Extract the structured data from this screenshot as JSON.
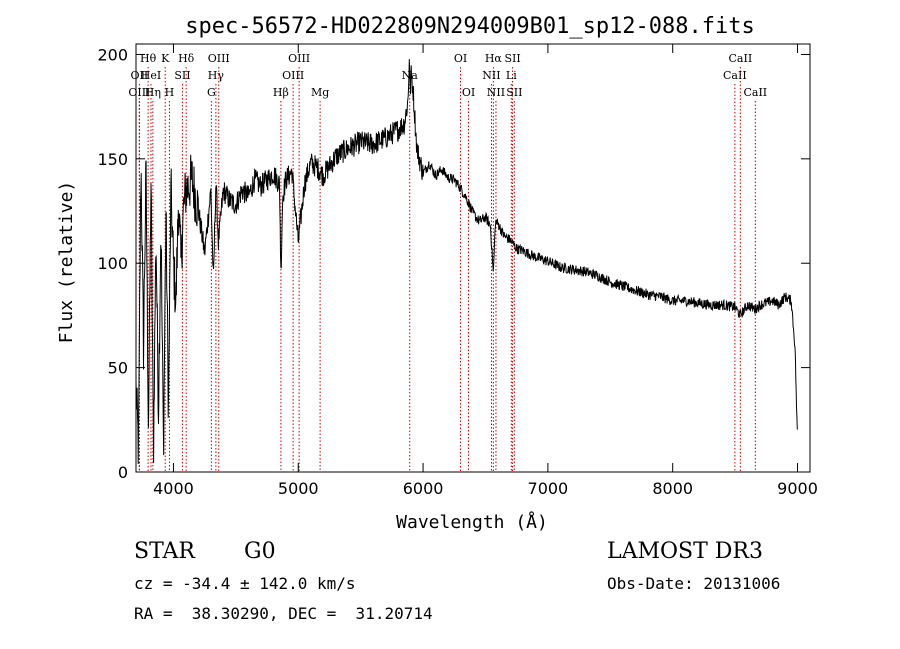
{
  "chart_data": {
    "type": "line",
    "title": "spec-56572-HD022809N294009B01_sp12-088.fits",
    "xlabel": "Wavelength (Å)",
    "ylabel": "Flux (relative)",
    "xlim": [
      3700,
      9100
    ],
    "ylim": [
      0,
      205
    ],
    "xticks": [
      4000,
      5000,
      6000,
      7000,
      8000,
      9000
    ],
    "yticks": [
      0,
      50,
      100,
      150,
      200
    ],
    "series": [
      {
        "name": "flux",
        "x": [
          3700,
          3720,
          3740,
          3760,
          3780,
          3800,
          3820,
          3840,
          3860,
          3880,
          3900,
          3920,
          3940,
          3960,
          3980,
          4000,
          4020,
          4040,
          4060,
          4080,
          4100,
          4150,
          4200,
          4250,
          4300,
          4320,
          4340,
          4360,
          4400,
          4450,
          4500,
          4550,
          4600,
          4650,
          4700,
          4750,
          4800,
          4850,
          4861,
          4875,
          4900,
          4950,
          5000,
          5050,
          5100,
          5150,
          5200,
          5300,
          5400,
          5500,
          5600,
          5700,
          5800,
          5850,
          5880,
          5890,
          5896,
          5905,
          5920,
          5950,
          6000,
          6050,
          6100,
          6150,
          6200,
          6250,
          6300,
          6350,
          6400,
          6450,
          6500,
          6540,
          6563,
          6580,
          6600,
          6650,
          6700,
          6750,
          6800,
          6900,
          7000,
          7100,
          7200,
          7300,
          7400,
          7500,
          7600,
          7700,
          7800,
          7900,
          8000,
          8100,
          8200,
          8300,
          8400,
          8500,
          8540,
          8600,
          8660,
          8700,
          8800,
          8850,
          8900,
          8950,
          8980,
          9000
        ],
        "y": [
          40,
          10,
          150,
          60,
          145,
          20,
          140,
          10,
          115,
          30,
          120,
          10,
          125,
          30,
          135,
          100,
          80,
          130,
          100,
          125,
          135,
          140,
          125,
          105,
          135,
          90,
          140,
          110,
          135,
          130,
          128,
          135,
          132,
          140,
          137,
          140,
          143,
          138,
          95,
          132,
          140,
          144,
          110,
          138,
          148,
          146,
          142,
          151,
          155,
          158,
          157,
          160,
          164,
          167,
          178,
          200,
          182,
          190,
          183,
          155,
          143,
          148,
          142,
          145,
          141,
          140,
          136,
          131,
          124,
          120,
          122,
          118,
          95,
          120,
          119,
          113,
          111,
          107,
          106,
          103,
          101,
          98,
          97,
          96,
          94,
          91,
          89,
          87,
          85,
          84,
          82,
          82,
          81,
          80,
          80,
          79,
          75,
          80,
          78,
          80,
          82,
          80,
          84,
          82,
          60,
          14
        ]
      }
    ],
    "annotations": [
      {
        "label": "Hθ",
        "x": 3797,
        "row": 1
      },
      {
        "label": "OII",
        "x": 3727,
        "row": 2
      },
      {
        "label": "OIII",
        "x": 3727,
        "row": 3
      },
      {
        "label": "HeI",
        "x": 3820,
        "row": 2
      },
      {
        "label": "Hη",
        "x": 3835,
        "row": 3
      },
      {
        "label": "K",
        "x": 3934,
        "row": 1
      },
      {
        "label": "H",
        "x": 3968,
        "row": 3
      },
      {
        "label": "SII",
        "x": 4072,
        "row": 2
      },
      {
        "label": "Hδ",
        "x": 4102,
        "row": 1
      },
      {
        "label": "OIII",
        "x": 4363,
        "row": 1
      },
      {
        "label": "Hγ",
        "x": 4340,
        "row": 2
      },
      {
        "label": "G",
        "x": 4304,
        "row": 3
      },
      {
        "label": "Hβ",
        "x": 4861,
        "row": 3
      },
      {
        "label": "OIII",
        "x": 5007,
        "row": 1
      },
      {
        "label": "OIII",
        "x": 4959,
        "row": 2
      },
      {
        "label": "Mg",
        "x": 5175,
        "row": 3
      },
      {
        "label": "Na",
        "x": 5893,
        "row": 2
      },
      {
        "label": "OI",
        "x": 6300,
        "row": 1
      },
      {
        "label": "OI",
        "x": 6364,
        "row": 3
      },
      {
        "label": "Hα",
        "x": 6563,
        "row": 1
      },
      {
        "label": "NII",
        "x": 6548,
        "row": 2
      },
      {
        "label": "NII",
        "x": 6584,
        "row": 3
      },
      {
        "label": "SII",
        "x": 6717,
        "row": 1
      },
      {
        "label": "Li",
        "x": 6707,
        "row": 2
      },
      {
        "label": "SII",
        "x": 6731,
        "row": 3
      },
      {
        "label": "CaII",
        "x": 8542,
        "row": 1
      },
      {
        "label": "CaII",
        "x": 8498,
        "row": 2
      },
      {
        "label": "CaII",
        "x": 8662,
        "row": 3
      }
    ]
  },
  "info": {
    "object_class": "STAR",
    "subclass": "G0",
    "survey": "LAMOST DR3",
    "cz": "cz = -34.4 ± 142.0 km/s",
    "obs_date": "Obs-Date: 20131006",
    "coords": "RA =  38.30290, DEC =  31.20714"
  },
  "colors": {
    "line": "#000000",
    "marker": "#cc0000"
  }
}
